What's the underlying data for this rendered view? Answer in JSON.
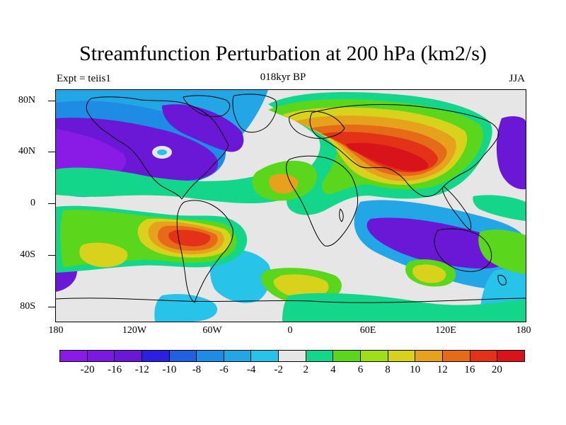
{
  "title": "Streamfunction Perturbation at 200 hPa (km2/s)",
  "experiment_label": "Expt = teiis1",
  "period_label": "018kyr BP",
  "season_label": "JJA",
  "y_axis_labels": [
    "80N",
    "40N",
    "0",
    "40S",
    "80S"
  ],
  "x_axis_labels": [
    "180",
    "120W",
    "60W",
    "0",
    "60E",
    "120E",
    "180"
  ],
  "colorbar": {
    "colors": [
      "#8a1be6",
      "#7d18e0",
      "#6a17d6",
      "#2d1fe0",
      "#1f5fe0",
      "#1e8be5",
      "#22a6e6",
      "#28c3e8",
      "#e6e6e6",
      "#14d68a",
      "#5ad61c",
      "#9ede1a",
      "#d8d21c",
      "#e6a21c",
      "#e66b18",
      "#e33218",
      "#d8141a"
    ],
    "labels": [
      "-20",
      "-16",
      "-12",
      "-10",
      "-8",
      "-6",
      "-4",
      "-2",
      "2",
      "4",
      "6",
      "8",
      "10",
      "12",
      "16",
      "20"
    ]
  }
}
